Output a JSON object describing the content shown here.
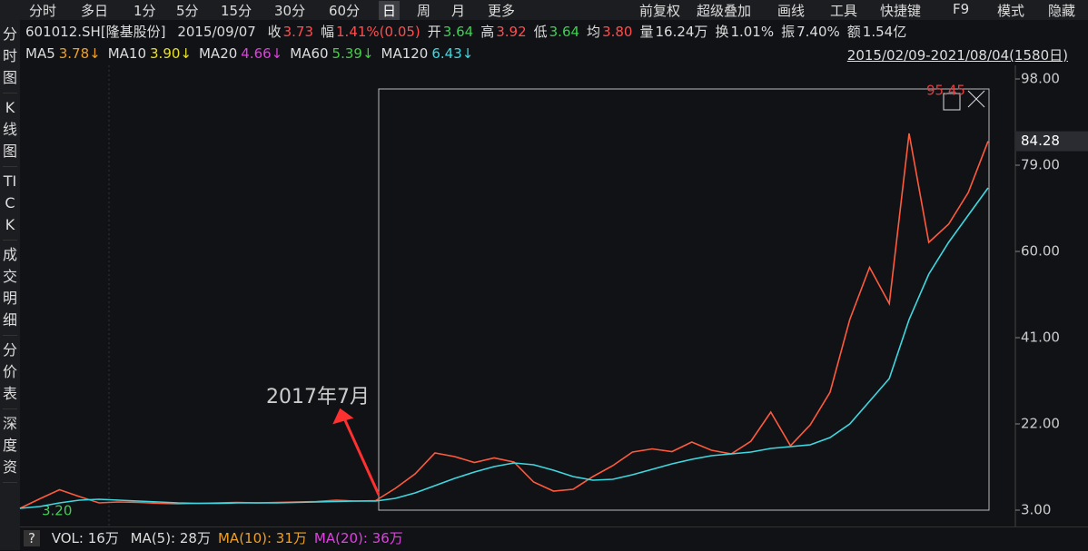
{
  "toolbar": {
    "left": [
      "分时",
      "多日",
      "1分",
      "5分",
      "15分",
      "30分",
      "60分",
      "日",
      "周",
      "月",
      "更多"
    ],
    "selected": 7,
    "right": [
      "前复权",
      "超级叠加",
      "画线",
      "工具",
      "快捷键",
      "F9",
      "模式",
      "隐藏"
    ]
  },
  "sidebar": [
    "分时图",
    "K线图",
    "TICK",
    "成交明细",
    "分价表",
    "深度资"
  ],
  "info": {
    "code": "601012.SH[隆基股份]",
    "date": "2015/09/07",
    "items": [
      {
        "label": "收",
        "value": "3.73",
        "color": "#ff4d4d"
      },
      {
        "label": "幅",
        "value": "1.41%(0.05)",
        "color": "#ff4d4d"
      },
      {
        "label": "开",
        "value": "3.64",
        "color": "#3fcf52"
      },
      {
        "label": "高",
        "value": "3.92",
        "color": "#ff4d4d"
      },
      {
        "label": "低",
        "value": "3.64",
        "color": "#3fcf52"
      },
      {
        "label": "均",
        "value": "3.80",
        "color": "#ff4d4d"
      },
      {
        "label": "量",
        "value": "16.24万",
        "color": "#dddddd"
      },
      {
        "label": "换",
        "value": "1.01%",
        "color": "#dddddd"
      },
      {
        "label": "振",
        "value": "7.40%",
        "color": "#dddddd"
      },
      {
        "label": "额",
        "value": "1.54亿",
        "color": "#dddddd"
      }
    ]
  },
  "ma_legend": [
    {
      "name": "MA5",
      "value": "3.78↓",
      "color": "#f0a020"
    },
    {
      "name": "MA10",
      "value": "3.90↓",
      "color": "#e8e020"
    },
    {
      "name": "MA20",
      "value": "4.66↓",
      "color": "#e040e0"
    },
    {
      "name": "MA60",
      "value": "5.39↓",
      "color": "#40d040"
    },
    {
      "name": "MA120",
      "value": "6.43↓",
      "color": "#40d8e0"
    }
  ],
  "range": "2015/02/09-2021/08/04(1580日)",
  "chart_data": {
    "type": "line",
    "ylim": [
      1,
      100
    ],
    "yticks": [
      {
        "value": 98,
        "label": "98.00"
      },
      {
        "value": 79,
        "label": "79.00"
      },
      {
        "value": 60,
        "label": "60.00"
      },
      {
        "value": 41,
        "label": "41.00"
      },
      {
        "value": 22,
        "label": "22.00"
      },
      {
        "value": 3,
        "label": "3.00"
      }
    ],
    "last_price": 84.28,
    "series": [
      {
        "color": "#ff5a3c",
        "values": [
          3.4,
          5.5,
          7.5,
          6.0,
          4.6,
          4.8,
          4.7,
          4.5,
          4.4,
          4.5,
          4.6,
          4.7,
          4.6,
          4.7,
          4.8,
          4.9,
          5.2,
          5.0,
          5.1,
          7.8,
          11.0,
          15.6,
          14.8,
          13.5,
          14.5,
          13.6,
          9.2,
          7.2,
          7.6,
          10.4,
          12.8,
          15.8,
          16.5,
          15.9,
          18.0,
          16.2,
          15.4,
          18.2,
          24.6,
          17.2,
          21.8,
          29.0,
          45.0,
          56.5,
          48.5,
          86.0,
          62.0,
          66.0,
          73.0,
          84.28
        ]
      },
      {
        "color": "#40d8e0",
        "values": [
          3.4,
          3.8,
          4.6,
          5.2,
          5.4,
          5.2,
          5.0,
          4.8,
          4.6,
          4.5,
          4.5,
          4.6,
          4.6,
          4.6,
          4.7,
          4.8,
          4.9,
          5.0,
          5.0,
          5.6,
          6.8,
          8.4,
          10.0,
          11.4,
          12.6,
          13.4,
          13.0,
          11.8,
          10.4,
          9.6,
          9.8,
          10.8,
          12.0,
          13.2,
          14.2,
          15.0,
          15.4,
          15.8,
          16.6,
          17.0,
          17.4,
          19.0,
          22.0,
          27.0,
          32.0,
          45.0,
          55.0,
          62.0,
          68.0,
          74.0
        ]
      }
    ],
    "annotations": {
      "high": "95.45",
      "low": "3.20",
      "callout": "2017年7月"
    }
  },
  "volume": {
    "vol": "VOL: 16万",
    "items": [
      {
        "text": "MA(5): 28万",
        "color": "#dddddd"
      },
      {
        "text": "MA(10): 31万",
        "color": "#f0a020"
      },
      {
        "text": "MA(20): 36万",
        "color": "#e040e0"
      }
    ]
  }
}
